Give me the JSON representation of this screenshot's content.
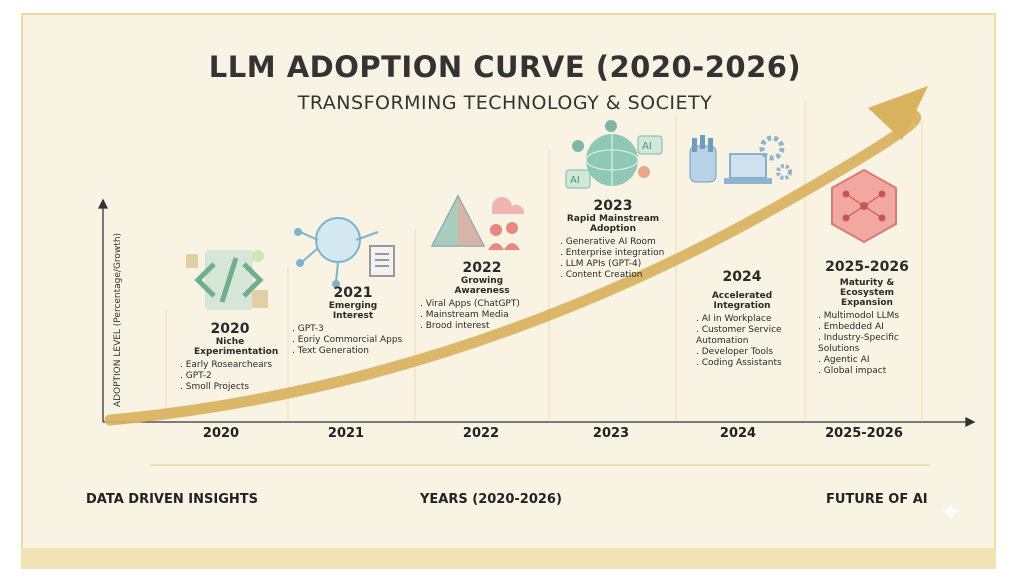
{
  "header": {
    "title": "LLM ADOPTION CURVE (2020-2026)",
    "subtitle": "TRANSFORMING TECHNOLOGY & SOCIETY"
  },
  "axis": {
    "y_label": "ADOPTION LEVEL (Percentage/Growth)",
    "x_ticks": [
      "2020",
      "2021",
      "2022",
      "2023",
      "2024",
      "2025-2026"
    ]
  },
  "stages": [
    {
      "year": "2020",
      "stage": "Niche Experimentation",
      "items": [
        "Early Rosearchears",
        "GPT-2",
        "Smoll Projects"
      ]
    },
    {
      "year": "2021",
      "stage": "Emerging Interest",
      "items": [
        "GPT-3",
        "Eoriy Commorcial Apps",
        "Text Generation"
      ]
    },
    {
      "year": "2022",
      "stage": "Growing Awareness",
      "items": [
        "Viral Apps (ChatGPT)",
        "Mainstream Media",
        "Brood interest"
      ]
    },
    {
      "year": "2023",
      "stage": "Rapid Mainstream Adoption",
      "items": [
        "Generative AI Room",
        "Enterprise integration",
        "LLM APIs (GPT-4)",
        "Content Creation"
      ]
    },
    {
      "year": "2024",
      "stage": "Accelerated Integration",
      "items": [
        "AI in Workplace",
        "Customer Service Automation",
        "Developer Tools",
        "Coding Assistants"
      ]
    },
    {
      "year": "2025-2026",
      "stage": "Maturity & Ecosystem Expansion",
      "items": [
        "Multimodol LLMs",
        "Embedded AI",
        "Industry-Specific Solutions",
        "Agentic AI",
        "Global impact"
      ]
    }
  ],
  "footer": {
    "left": "DATA DRIVEN INSIGHTS",
    "center": "YEARS (2020-2026)",
    "right": "FUTURE OF AI"
  },
  "colors": {
    "background": "#f8f3e3",
    "border": "#efdca2",
    "curve": "#d9b25e",
    "accent_teal": "#7fb7a3",
    "accent_coral": "#e8877e"
  }
}
